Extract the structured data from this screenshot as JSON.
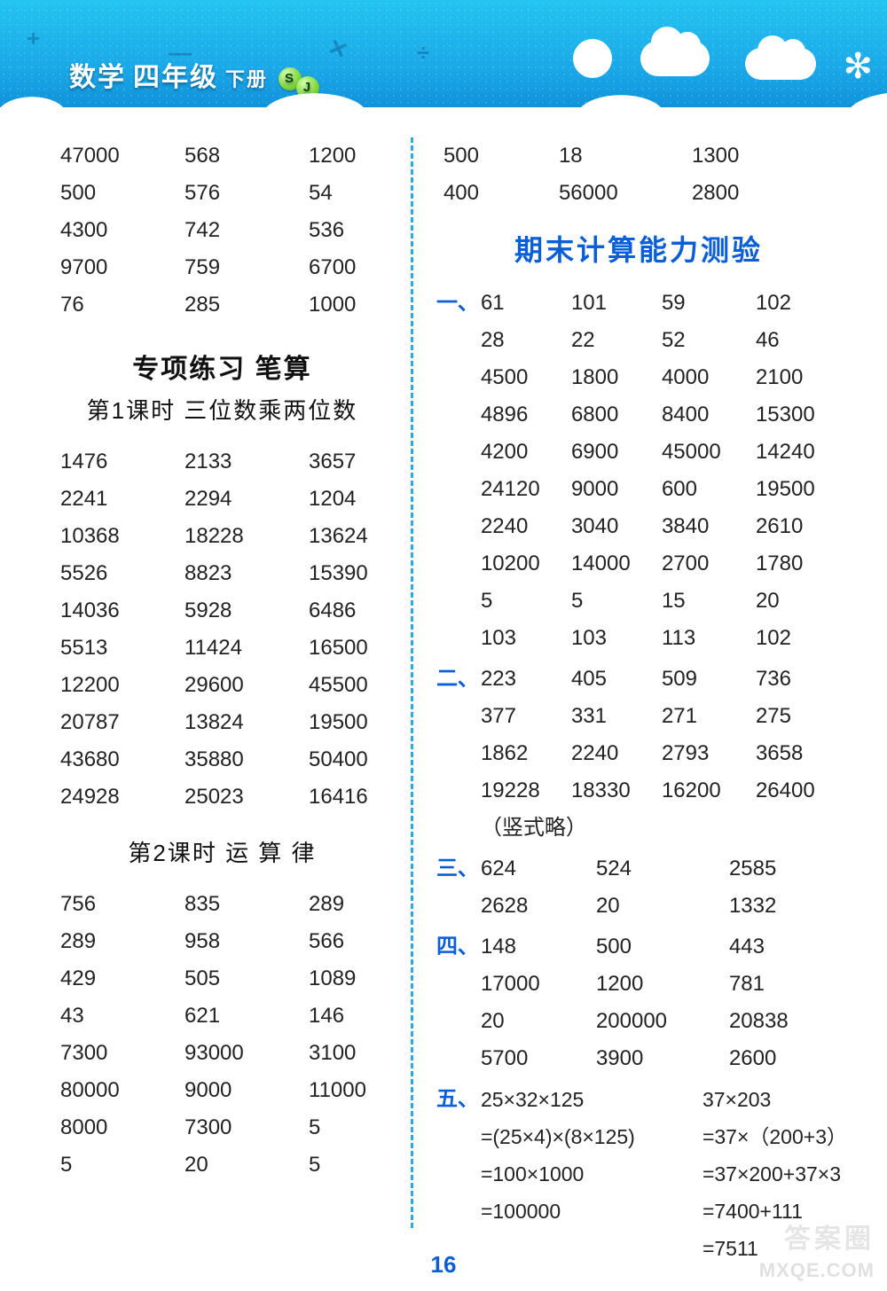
{
  "banner": {
    "subject": "数学",
    "grade": "四年级",
    "volume": "下册",
    "badge_s": "S",
    "badge_j": "J",
    "bg_colors": [
      "#24c4f0",
      "#1aa8e8",
      "#0d8dd6"
    ]
  },
  "page_number": "16",
  "watermark_top": "答案圈",
  "watermark_bottom": "MXQE.COM",
  "left_top_grid": {
    "cols": 3,
    "rows": [
      [
        "47000",
        "568",
        "1200"
      ],
      [
        "500",
        "576",
        "54"
      ],
      [
        "4300",
        "742",
        "536"
      ],
      [
        "9700",
        "759",
        "6700"
      ],
      [
        "76",
        "285",
        "1000"
      ]
    ]
  },
  "left_section1": {
    "heading": "专项练习  笔算",
    "subheading": "第1课时  三位数乘两位数",
    "rows": [
      [
        "1476",
        "2133",
        "3657"
      ],
      [
        "2241",
        "2294",
        "1204"
      ],
      [
        "10368",
        "18228",
        "13624"
      ],
      [
        "5526",
        "8823",
        "15390"
      ],
      [
        "14036",
        "5928",
        "6486"
      ],
      [
        "5513",
        "11424",
        "16500"
      ],
      [
        "12200",
        "29600",
        "45500"
      ],
      [
        "20787",
        "13824",
        "19500"
      ],
      [
        "43680",
        "35880",
        "50400"
      ],
      [
        "24928",
        "25023",
        "16416"
      ]
    ]
  },
  "left_section2": {
    "subheading": "第2课时  运  算  律",
    "rows": [
      [
        "756",
        "835",
        "289"
      ],
      [
        "289",
        "958",
        "566"
      ],
      [
        "429",
        "505",
        "1089"
      ],
      [
        "43",
        "621",
        "146"
      ],
      [
        "7300",
        "93000",
        "3100"
      ],
      [
        "80000",
        "9000",
        "11000"
      ],
      [
        "8000",
        "7300",
        "5"
      ],
      [
        "5",
        "20",
        "5"
      ]
    ]
  },
  "right_top_grid": {
    "rows": [
      [
        "500",
        "18",
        "1300"
      ],
      [
        "400",
        "56000",
        "2800"
      ]
    ]
  },
  "right_title": "期末计算能力测验",
  "sec1": {
    "label": "一、",
    "rows": [
      [
        "61",
        "101",
        "59",
        "102"
      ],
      [
        "28",
        "22",
        "52",
        "46"
      ],
      [
        "4500",
        "1800",
        "4000",
        "2100"
      ],
      [
        "4896",
        "6800",
        "8400",
        "15300"
      ],
      [
        "4200",
        "6900",
        "45000",
        "14240"
      ],
      [
        "24120",
        "9000",
        "600",
        "19500"
      ],
      [
        "2240",
        "3040",
        "3840",
        "2610"
      ],
      [
        "10200",
        "14000",
        "2700",
        "1780"
      ],
      [
        "5",
        "5",
        "15",
        "20"
      ],
      [
        "103",
        "103",
        "113",
        "102"
      ]
    ]
  },
  "sec2": {
    "label": "二、",
    "rows": [
      [
        "223",
        "405",
        "509",
        "736"
      ],
      [
        "377",
        "331",
        "271",
        "275"
      ],
      [
        "1862",
        "2240",
        "2793",
        "3658"
      ],
      [
        "19228",
        "18330",
        "16200",
        "26400"
      ]
    ],
    "note": "（竖式略）"
  },
  "sec3": {
    "label": "三、",
    "rows": [
      [
        "624",
        "524",
        "2585"
      ],
      [
        "2628",
        "20",
        "1332"
      ]
    ]
  },
  "sec4": {
    "label": "四、",
    "rows": [
      [
        "148",
        "500",
        "443"
      ],
      [
        "17000",
        "1200",
        "781"
      ],
      [
        "20",
        "200000",
        "20838"
      ],
      [
        "5700",
        "3900",
        "2600"
      ]
    ]
  },
  "sec5": {
    "label": "五、",
    "left_eq": [
      "25×32×125",
      "=(25×4)×(8×125)",
      "=100×1000",
      "=100000"
    ],
    "right_eq": [
      "37×203",
      "=37×（200+3）",
      "=37×200+37×3",
      "=7400+111",
      "=7511"
    ]
  },
  "colors": {
    "blue_heading": "#0a5fd6",
    "divider": "#2aa8e0",
    "text": "#222222"
  }
}
